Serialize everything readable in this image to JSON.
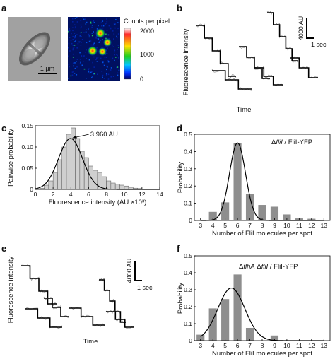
{
  "panels": {
    "a": {
      "label": "a",
      "scale_bar": "1 μm",
      "colorbar_title": "Counts per pixel",
      "colorbar_ticks": [
        "2000",
        "1000",
        "0"
      ],
      "colorbar_range": [
        0,
        2000
      ],
      "colorbar_colors": [
        "#ffffff",
        "#ff2a2a",
        "#ffe000",
        "#20d020",
        "#00c8ff",
        "#0030ff",
        "#000060"
      ]
    },
    "b": {
      "label": "b",
      "ylabel": "Fluorescence intensity",
      "xlabel": "Time",
      "scale_intensity": "4000 AU",
      "scale_time": "1 sec"
    },
    "c": {
      "label": "c"
    },
    "d": {
      "label": "d",
      "annotation_italic": "fliI",
      "annotation_rest": " / FliI-YFP"
    },
    "e": {
      "label": "e",
      "ylabel": "Fluorescence intensity",
      "xlabel": "Time",
      "scale_intensity": "4000 AU",
      "scale_time": "1 sec"
    },
    "f": {
      "label": "f",
      "annotation_italic_1": "flhA",
      "annotation_italic_2": "fliI",
      "annotation_rest": " / FliI-YFP"
    }
  },
  "chart_data": [
    {
      "panel": "c",
      "type": "bar",
      "xlabel": "Fluorescence intensity (AU ×10³)",
      "ylabel": "Pairwise probability",
      "xlim": [
        0,
        14
      ],
      "ylim": [
        0,
        0.15
      ],
      "xticks": [
        0,
        2,
        4,
        6,
        8,
        10,
        12,
        14
      ],
      "yticks": [
        0,
        0.05,
        0.1,
        0.15
      ],
      "ytick_labels": [
        "0",
        "0.05",
        "0.10",
        "0.15"
      ],
      "bin_width": 0.5,
      "bin_starts": [
        0.5,
        1.0,
        1.5,
        2.0,
        2.5,
        3.0,
        3.5,
        4.0,
        4.5,
        5.0,
        5.5,
        6.0,
        6.5,
        7.0,
        7.5,
        8.0,
        8.5,
        9.0,
        9.5,
        10.0,
        10.5,
        11.0,
        11.5
      ],
      "values": [
        0.003,
        0.01,
        0.02,
        0.04,
        0.07,
        0.1,
        0.13,
        0.145,
        0.12,
        0.09,
        0.075,
        0.055,
        0.045,
        0.04,
        0.03,
        0.02,
        0.015,
        0.012,
        0.01,
        0.008,
        0.005,
        0.003,
        0.002
      ],
      "fit": {
        "type": "gaussian",
        "peak": 3960,
        "peak_x": 3.96,
        "peak_y": 0.12,
        "sigma": 1.35
      },
      "annotation": "3,960 AU",
      "fill": "#cfcfcf"
    },
    {
      "panel": "d",
      "type": "bar",
      "xlabel": "Number of FliI molecules per spot",
      "ylabel": "Probability",
      "categories": [
        "3",
        "4",
        "5",
        "6",
        "7",
        "8",
        "9",
        "10",
        "11",
        "12",
        "13"
      ],
      "values": [
        0,
        0.05,
        0.105,
        0.45,
        0.155,
        0.09,
        0.08,
        0.035,
        0.012,
        0.01,
        0
      ],
      "ylim": [
        0,
        0.5
      ],
      "yticks": [
        0,
        0.1,
        0.2,
        0.3,
        0.4,
        0.5
      ],
      "fit": {
        "type": "gaussian",
        "center": 6.0,
        "peak_y": 0.45,
        "sigma": 0.65
      },
      "fill": "#8e8e8e"
    },
    {
      "panel": "f",
      "type": "bar",
      "xlabel": "Number of FliI molecules per spot",
      "ylabel": "Probability",
      "categories": [
        "3",
        "4",
        "5",
        "6",
        "7",
        "8",
        "9",
        "10",
        "11",
        "12",
        "13"
      ],
      "values": [
        0.035,
        0.19,
        0.245,
        0.39,
        0.075,
        0,
        0.03,
        0,
        0,
        0,
        0
      ],
      "ylim": [
        0,
        0.5
      ],
      "yticks": [
        0,
        0.1,
        0.2,
        0.3,
        0.4,
        0.5
      ],
      "fit": {
        "type": "gaussian",
        "center": 5.5,
        "peak_y": 0.31,
        "sigma": 1.1
      },
      "fill": "#8e8e8e"
    }
  ]
}
